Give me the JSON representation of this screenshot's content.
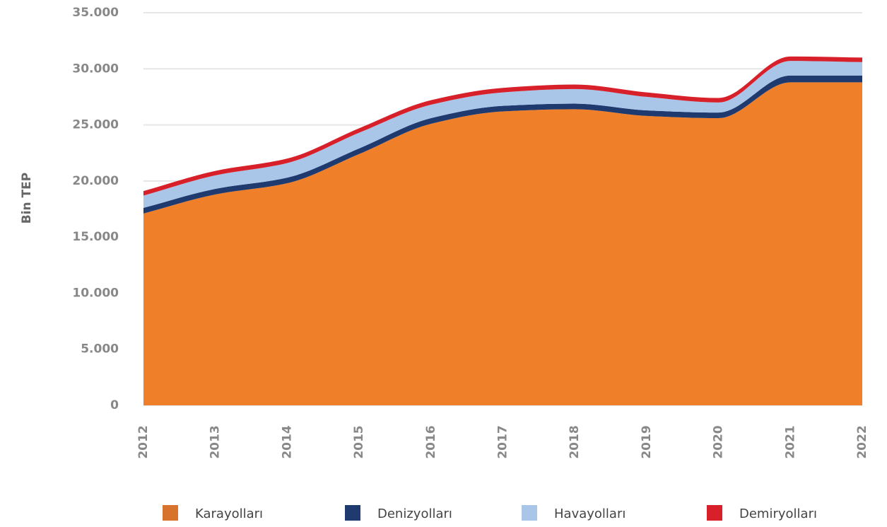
{
  "chart_data": {
    "type": "stacked_area",
    "y_label": "Bin TEP",
    "categories": [
      "2012",
      "2013",
      "2014",
      "2015",
      "2016",
      "2017",
      "2018",
      "2019",
      "2020",
      "2021",
      "2022"
    ],
    "series": [
      {
        "name": "Karayolları",
        "color": "#f07f29",
        "values": [
          17100,
          18800,
          19800,
          22400,
          25100,
          26200,
          26400,
          25800,
          25600,
          28800,
          28800
        ]
      },
      {
        "name": "Denizyolları",
        "color": "#1f3a6e",
        "values": [
          500,
          500,
          500,
          500,
          500,
          500,
          500,
          500,
          500,
          600,
          600
        ]
      },
      {
        "name": "Havayolları",
        "color": "#a9c5e8",
        "values": [
          1100,
          1200,
          1300,
          1400,
          1200,
          1200,
          1300,
          1200,
          900,
          1300,
          1200
        ]
      },
      {
        "name": "Demiryolları",
        "color": "#d7202a",
        "values": [
          400,
          400,
          400,
          400,
          400,
          400,
          400,
          400,
          400,
          400,
          400
        ]
      }
    ],
    "ylim": [
      0,
      35000
    ],
    "yticks": [
      0,
      {
        "value": 5000,
        "label": "5.000"
      },
      {
        "value": 10000,
        "label": "10.000"
      },
      {
        "value": 15000,
        "label": "15.000"
      },
      {
        "value": 20000,
        "label": "20.000"
      },
      {
        "value": 25000,
        "label": "25.000"
      },
      {
        "value": 30000,
        "label": "30.000"
      },
      {
        "value": 35000,
        "label": "35.000"
      }
    ],
    "grid": true
  }
}
